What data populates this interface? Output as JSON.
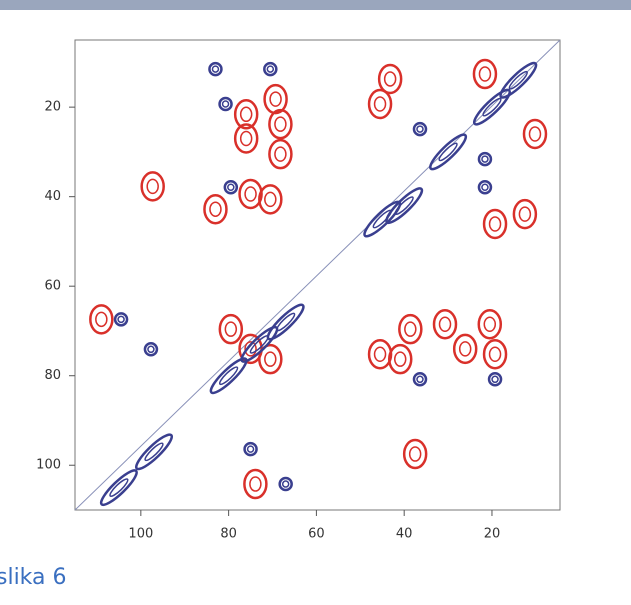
{
  "chart_data": {
    "type": "scatter",
    "caption": "slika 6",
    "xlim": [
      115,
      4.5
    ],
    "ylim": [
      5,
      110
    ],
    "xticks": [
      100,
      80,
      60,
      40,
      20
    ],
    "yticks": [
      20,
      40,
      60,
      80,
      100
    ],
    "series": [
      {
        "color": "#d9302a",
        "shape": "cross-peak",
        "x": [
          43.2,
          45.5,
          21.6,
          10.2,
          76,
          69.3,
          76,
          68.2,
          68.2,
          97.3,
          83,
          75,
          70.5,
          12.5,
          19.3,
          109,
          79.5,
          75,
          70.5,
          38.6,
          30.7,
          20.5,
          26.1,
          19.3,
          40.9,
          45.5,
          37.5,
          73.9
        ],
        "y": [
          13.7,
          19.3,
          12.6,
          26,
          21.6,
          18.2,
          27,
          23.8,
          30.5,
          37.7,
          42.8,
          39.4,
          40.6,
          43.9,
          46.1,
          67.4,
          69.6,
          74,
          76.3,
          69.6,
          68.5,
          68.5,
          74,
          75.2,
          76.3,
          75.2,
          97.5,
          104.2
        ]
      },
      {
        "color": "#3a3f8f",
        "shape": "cross-peak",
        "x": [
          83,
          70.5,
          80.7,
          36.4,
          79.5,
          104.5,
          97.7,
          36.4,
          19.3,
          75,
          67,
          21.6,
          21.6
        ],
        "y": [
          11.5,
          11.5,
          19.3,
          24.9,
          37.9,
          67.4,
          74.1,
          80.8,
          80.8,
          96.4,
          104.2,
          31.6,
          37.9
        ]
      },
      {
        "color": "#3a3f8f",
        "shape": "diagonal-peak",
        "x": [
          105,
          97,
          80,
          73,
          67,
          45,
          40,
          30,
          20,
          14
        ],
        "y": [
          105,
          97,
          80,
          73,
          68,
          45,
          42,
          30,
          20,
          14
        ]
      }
    ]
  }
}
